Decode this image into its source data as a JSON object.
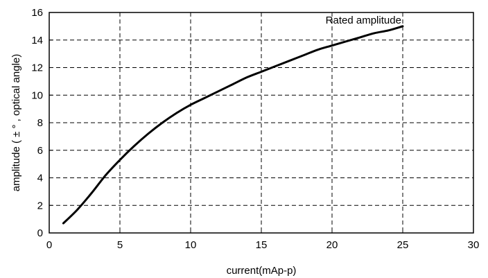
{
  "chart_data": {
    "type": "line",
    "xlabel": "current(mAp-p)",
    "ylabel": "amplitude ( ± ° , optical angle)",
    "xlim": [
      0,
      30
    ],
    "ylim": [
      0,
      16
    ],
    "x_ticks": [
      0,
      5,
      10,
      15,
      20,
      25,
      30
    ],
    "y_ticks": [
      0,
      2,
      4,
      6,
      8,
      10,
      12,
      14,
      16
    ],
    "grid": true,
    "series": [
      {
        "color": "#000000",
        "x": [
          1,
          2,
          3,
          4,
          5,
          6,
          7,
          8,
          9,
          10,
          11,
          12,
          13,
          14,
          15,
          16,
          17,
          18,
          19,
          20,
          21,
          22,
          23,
          24,
          25
        ],
        "y": [
          0.7,
          1.7,
          2.9,
          4.2,
          5.3,
          6.3,
          7.2,
          8.0,
          8.7,
          9.3,
          9.8,
          10.3,
          10.8,
          11.3,
          11.7,
          12.1,
          12.5,
          12.9,
          13.3,
          13.6,
          13.9,
          14.2,
          14.5,
          14.7,
          15.0
        ]
      }
    ],
    "annotations": [
      {
        "text": "Rated amplitude",
        "x": 24.8,
        "y": 15.0
      }
    ]
  }
}
